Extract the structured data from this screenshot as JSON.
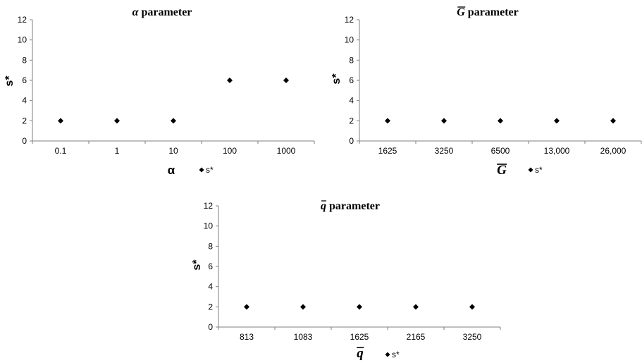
{
  "chart_data": [
    {
      "type": "scatter",
      "title_symbol": "α",
      "title": "parameter",
      "xlabel": "α",
      "ylabel": "s*",
      "categories": [
        "0.1",
        "1",
        "10",
        "100",
        "1000"
      ],
      "series": [
        {
          "name": "s*",
          "values": [
            2,
            2,
            2,
            6,
            6
          ]
        }
      ],
      "ylim": [
        0,
        12
      ],
      "yticks": [
        "0",
        "2",
        "4",
        "6",
        "8",
        "10",
        "12"
      ],
      "legend": "right of x-axis label",
      "grid": false,
      "marker_color": "#000000"
    },
    {
      "type": "scatter",
      "title_symbol": "G",
      "title": "parameter",
      "xlabel": "G",
      "ylabel": "s*",
      "categories": [
        "1625",
        "3250",
        "6500",
        "13,000",
        "26,000"
      ],
      "series": [
        {
          "name": "s*",
          "values": [
            2,
            2,
            2,
            2,
            2
          ]
        }
      ],
      "ylim": [
        0,
        12
      ],
      "yticks": [
        "0",
        "2",
        "4",
        "6",
        "8",
        "10",
        "12"
      ],
      "legend": "right of x-axis label",
      "grid": false,
      "marker_color": "#000000"
    },
    {
      "type": "scatter",
      "title_symbol": "q",
      "title": "parameter",
      "xlabel": "q",
      "ylabel": "s*",
      "categories": [
        "813",
        "1083",
        "1625",
        "2165",
        "3250"
      ],
      "series": [
        {
          "name": "s*",
          "values": [
            2,
            2,
            2,
            2,
            2
          ]
        }
      ],
      "ylim": [
        0,
        12
      ],
      "yticks": [
        "0",
        "2",
        "4",
        "6",
        "8",
        "10",
        "12"
      ],
      "legend": "right of x-axis label",
      "grid": false,
      "marker_color": "#000000"
    }
  ]
}
